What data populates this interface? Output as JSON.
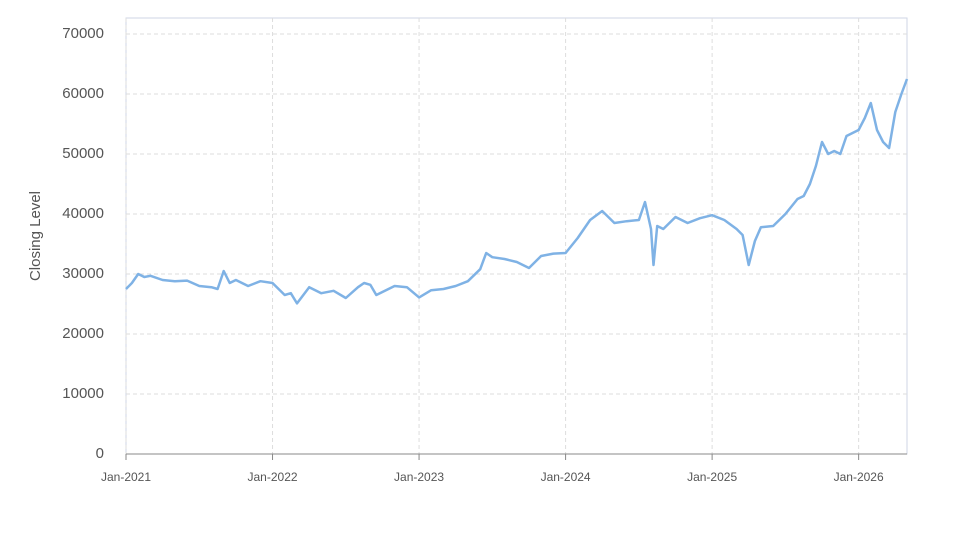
{
  "chart_data": {
    "type": "line",
    "y_label": "Closing Level",
    "x": [
      2021.0,
      2021.04,
      2021.083,
      2021.125,
      2021.167,
      2021.25,
      2021.333,
      2021.417,
      2021.5,
      2021.583,
      2021.625,
      2021.667,
      2021.708,
      2021.75,
      2021.833,
      2021.917,
      2022.0,
      2022.083,
      2022.125,
      2022.167,
      2022.25,
      2022.333,
      2022.417,
      2022.5,
      2022.583,
      2022.625,
      2022.667,
      2022.708,
      2022.75,
      2022.833,
      2022.917,
      2023.0,
      2023.083,
      2023.167,
      2023.25,
      2023.333,
      2023.417,
      2023.458,
      2023.5,
      2023.583,
      2023.667,
      2023.75,
      2023.833,
      2023.917,
      2024.0,
      2024.083,
      2024.167,
      2024.25,
      2024.333,
      2024.417,
      2024.5,
      2024.542,
      2024.583,
      2024.6,
      2024.625,
      2024.667,
      2024.75,
      2024.833,
      2024.917,
      2025.0,
      2025.083,
      2025.167,
      2025.208,
      2025.25,
      2025.292,
      2025.333,
      2025.417,
      2025.5,
      2025.583,
      2025.625,
      2025.667,
      2025.708,
      2025.75,
      2025.792,
      2025.833,
      2025.875,
      2025.917,
      2026.0,
      2026.042,
      2026.083,
      2026.125,
      2026.167,
      2026.208,
      2026.25,
      2026.292,
      2026.33
    ],
    "series": [
      {
        "name": "Closing Level",
        "color": "#7fb2e5",
        "values": [
          27500,
          28500,
          30000,
          29500,
          29700,
          29000,
          28800,
          28900,
          28000,
          27800,
          27500,
          30500,
          28500,
          29000,
          28000,
          28800,
          28500,
          26500,
          26800,
          25100,
          27800,
          26800,
          27200,
          26000,
          27800,
          28500,
          28200,
          26500,
          27000,
          28000,
          27800,
          26100,
          27300,
          27500,
          28000,
          28800,
          30800,
          33500,
          32800,
          32500,
          32000,
          31000,
          33000,
          33400,
          33500,
          36000,
          39000,
          40500,
          38500,
          38800,
          39000,
          42000,
          37500,
          31500,
          38000,
          37500,
          39500,
          38500,
          39300,
          39800,
          39000,
          37500,
          36500,
          31500,
          35500,
          37800,
          38000,
          40000,
          42500,
          43000,
          45000,
          48000,
          52000,
          50000,
          50500,
          50000,
          53000,
          54000,
          56000,
          58500,
          54000,
          52000,
          51000,
          57000,
          60000,
          62500
        ]
      }
    ],
    "xlim": [
      2021.0,
      2026.33
    ],
    "xticks": [
      {
        "value": 2021,
        "label": "Jan-2021"
      },
      {
        "value": 2022,
        "label": "Jan-2022"
      },
      {
        "value": 2023,
        "label": "Jan-2023"
      },
      {
        "value": 2024,
        "label": "Jan-2024"
      },
      {
        "value": 2025,
        "label": "Jan-2025"
      },
      {
        "value": 2026,
        "label": "Jan-2026"
      }
    ],
    "ylim": [
      0,
      70000
    ],
    "yticks": [
      0,
      10000,
      20000,
      30000,
      40000,
      50000,
      60000,
      70000
    ],
    "grid": true
  }
}
